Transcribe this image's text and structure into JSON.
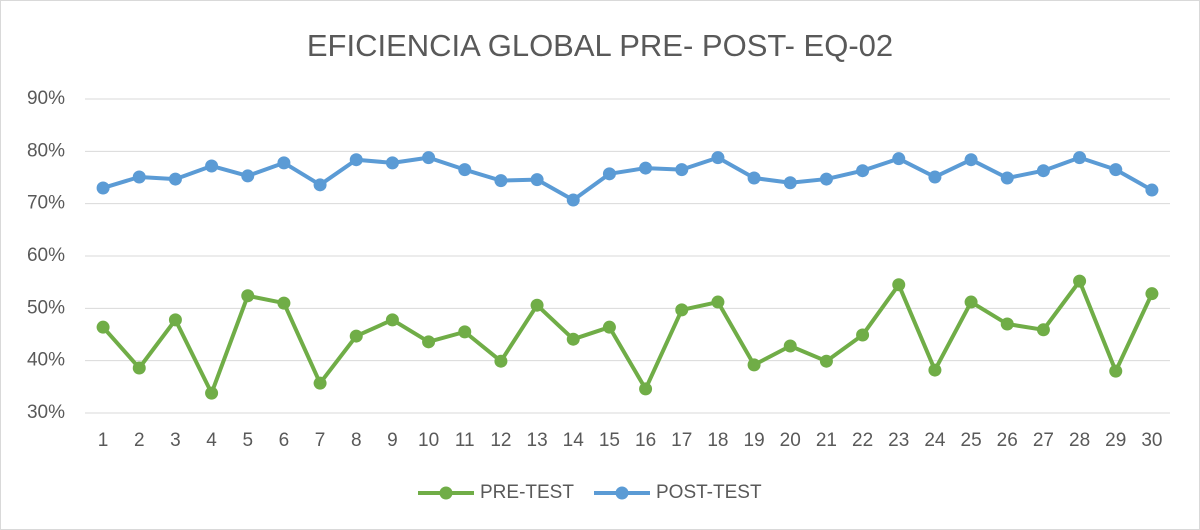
{
  "chart_data": {
    "type": "line",
    "title": "EFICIENCIA GLOBAL PRE- POST- EQ-02",
    "categories": [
      "1",
      "2",
      "3",
      "4",
      "5",
      "6",
      "7",
      "8",
      "9",
      "10",
      "11",
      "12",
      "13",
      "14",
      "15",
      "16",
      "17",
      "18",
      "19",
      "20",
      "21",
      "22",
      "23",
      "24",
      "25",
      "26",
      "27",
      "28",
      "29",
      "30"
    ],
    "series": [
      {
        "name": "PRE-TEST",
        "color": "#70ad47",
        "values": [
          46.4,
          38.6,
          47.8,
          33.8,
          52.4,
          51.0,
          35.7,
          44.7,
          47.8,
          43.6,
          45.5,
          39.9,
          50.6,
          44.1,
          46.4,
          34.6,
          49.7,
          51.2,
          39.2,
          42.8,
          39.9,
          44.9,
          54.5,
          38.2,
          51.2,
          47.0,
          45.9,
          55.2,
          38.0,
          52.8
        ]
      },
      {
        "name": "POST-TEST",
        "color": "#5b9bd5",
        "values": [
          73.0,
          75.1,
          74.7,
          77.2,
          75.3,
          77.8,
          73.6,
          78.4,
          77.8,
          78.8,
          76.5,
          74.4,
          74.6,
          70.7,
          75.7,
          76.8,
          76.5,
          78.8,
          74.9,
          74.0,
          74.7,
          76.3,
          78.6,
          75.1,
          78.4,
          74.9,
          76.3,
          78.8,
          76.5,
          72.6
        ]
      }
    ],
    "ylim": [
      30,
      90
    ],
    "yticks": [
      {
        "value": 30,
        "label": "30%"
      },
      {
        "value": 40,
        "label": "40%"
      },
      {
        "value": 50,
        "label": "50%"
      },
      {
        "value": 60,
        "label": "60%"
      },
      {
        "value": 70,
        "label": "70%"
      },
      {
        "value": 80,
        "label": "80%"
      },
      {
        "value": 90,
        "label": "90%"
      }
    ],
    "grid": true,
    "legend": "bottom"
  }
}
